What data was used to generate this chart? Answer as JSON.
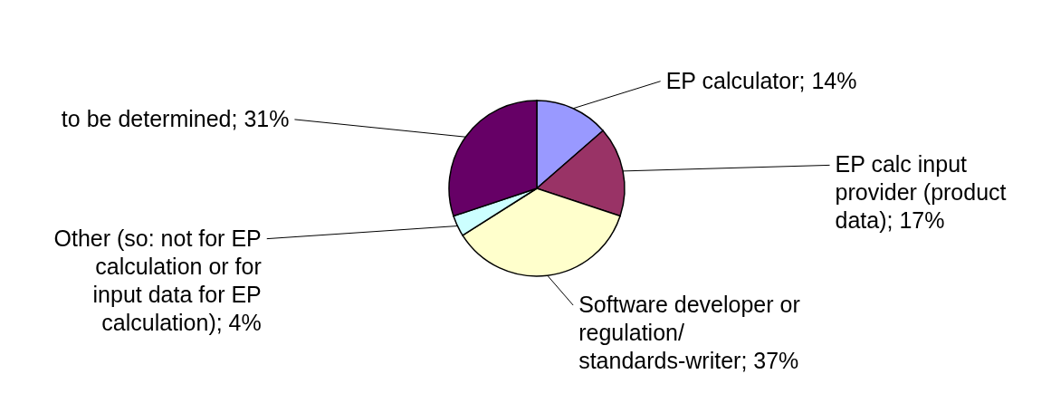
{
  "chart_data": {
    "type": "pie",
    "categories": [
      "EP calculator",
      "EP calc input provider (product data)",
      "Software developer or regulation/ standards-writer",
      "Other (so: not for EP calculation or for input data for EP calculation)",
      "to be determined"
    ],
    "values": [
      14,
      17,
      37,
      4,
      31
    ],
    "value_labels": [
      "14%",
      "17%",
      "37%",
      "4%",
      "31%"
    ],
    "colors": [
      "#9999ff",
      "#993366",
      "#ffffcc",
      "#ccffff",
      "#660066"
    ]
  }
}
